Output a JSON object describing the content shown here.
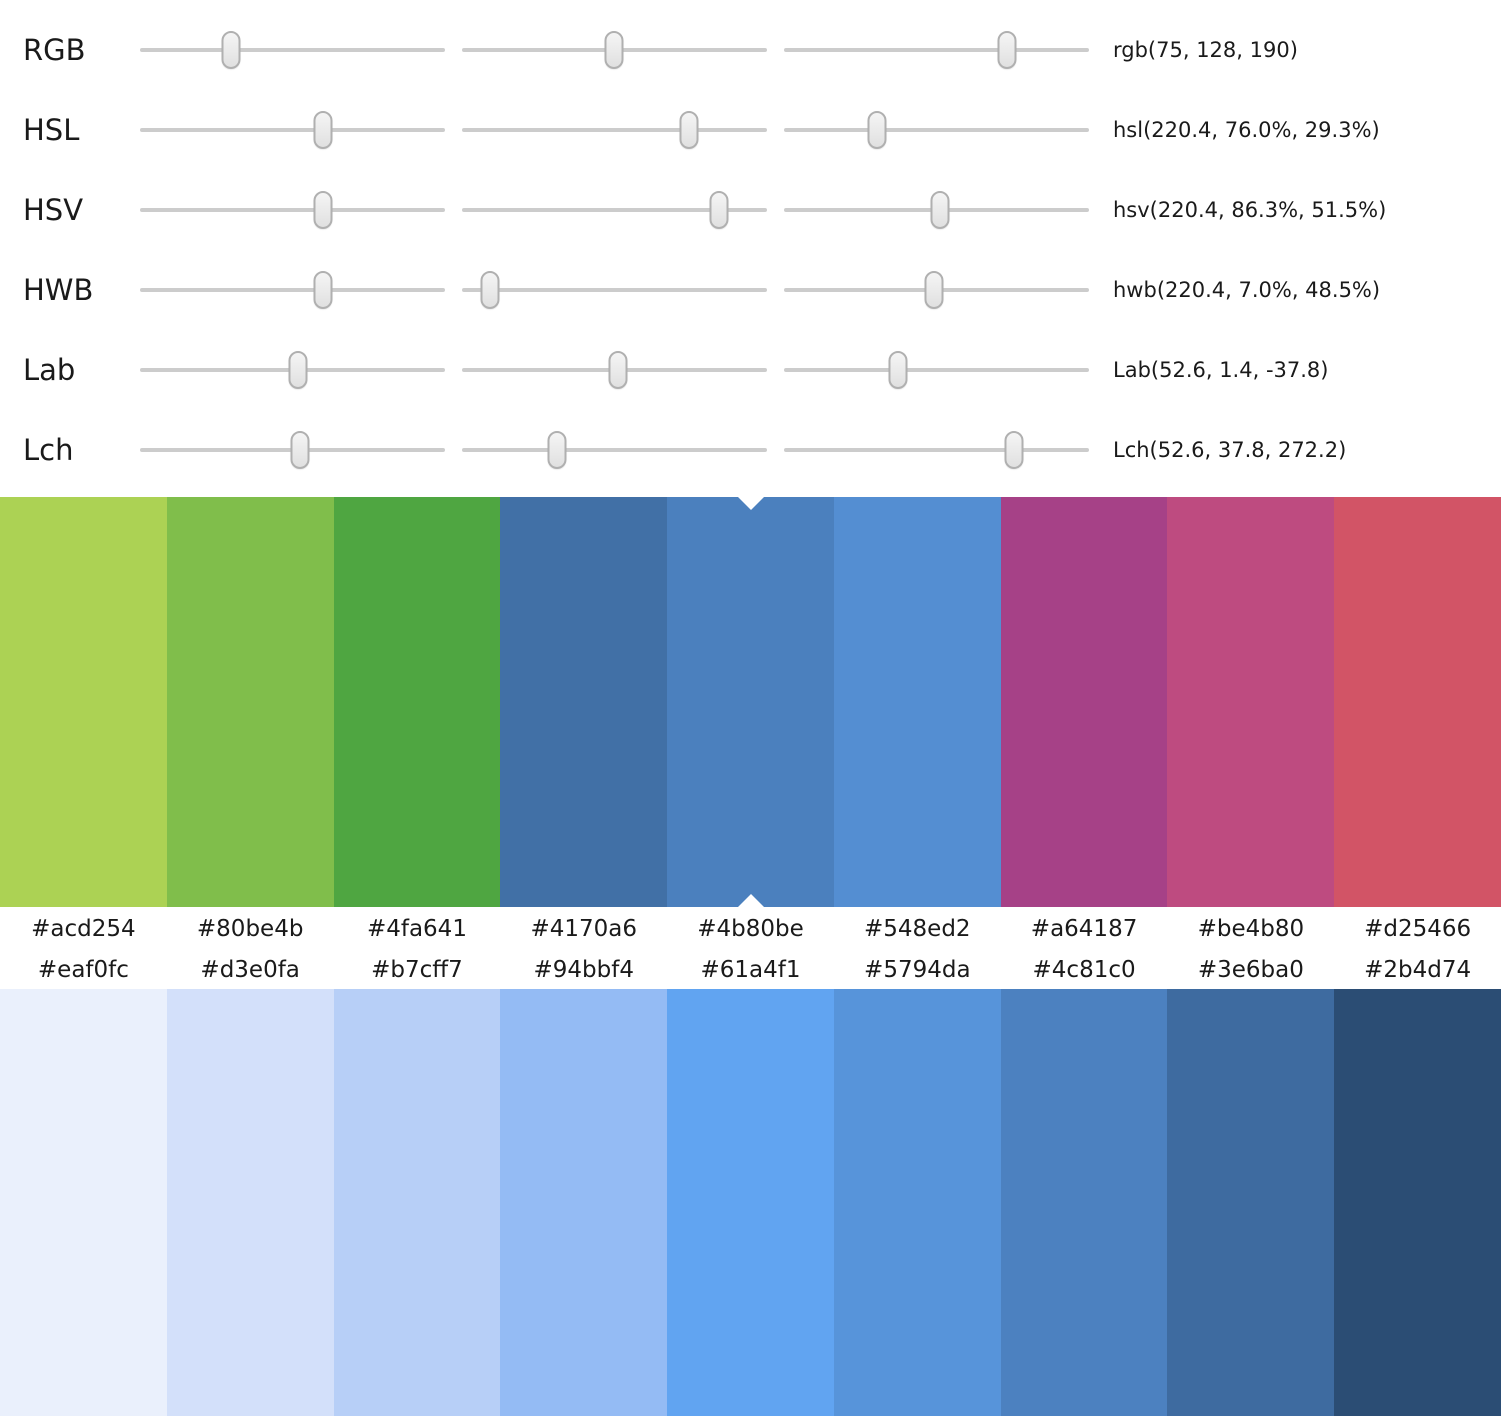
{
  "sliders": {
    "rows": [
      {
        "label": "RGB",
        "value": "rgb(75, 128, 190)",
        "thumb_positions_pct": [
          29.8,
          49.7,
          73.1
        ]
      },
      {
        "label": "HSL",
        "value": "hsl(220.4, 76.0%, 29.3%)",
        "thumb_positions_pct": [
          60.0,
          74.5,
          30.5
        ]
      },
      {
        "label": "HSV",
        "value": "hsv(220.4, 86.3%, 51.5%)",
        "thumb_positions_pct": [
          60.0,
          84.3,
          51.1
        ]
      },
      {
        "label": "HWB",
        "value": "hwb(220.4, 7.0%, 48.5%)",
        "thumb_positions_pct": [
          60.0,
          9.2,
          49.2
        ]
      },
      {
        "label": "Lab",
        "value": "Lab(52.6, 1.4, -37.8)",
        "thumb_positions_pct": [
          51.8,
          51.0,
          37.4
        ]
      },
      {
        "label": "Lch",
        "value": "Lch(52.6, 37.8, 272.2)",
        "thumb_positions_pct": [
          52.5,
          31.0,
          75.4
        ]
      }
    ]
  },
  "hue_palette": {
    "selected_index": 4,
    "swatches": [
      "#acd254",
      "#80be4b",
      "#4fa641",
      "#4170a6",
      "#4b80be",
      "#548ed2",
      "#a64187",
      "#be4b80",
      "#d25466"
    ]
  },
  "lightness_scale": {
    "swatches": [
      "#eaf0fc",
      "#d3e0fa",
      "#b7cff7",
      "#94bbf4",
      "#61a4f1",
      "#5794da",
      "#4c81c0",
      "#3e6ba0",
      "#2b4d74"
    ]
  },
  "colors": {
    "track": "#cccccc",
    "thumb_border": "#b0b0b0",
    "notch": "#ffffff",
    "text": "#1a1a1a"
  }
}
